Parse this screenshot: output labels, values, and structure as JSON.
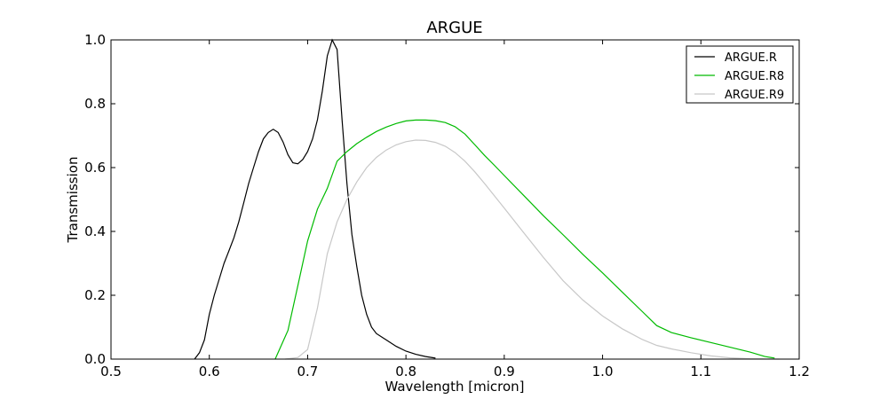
{
  "chart_data": {
    "type": "line",
    "title": "ARGUE",
    "xlabel": "Wavelength [micron]",
    "ylabel": "Transmission",
    "xlim": [
      0.5,
      1.2
    ],
    "ylim": [
      0.0,
      1.0
    ],
    "xticks": [
      0.5,
      0.6,
      0.7,
      0.8,
      0.9,
      1.0,
      1.1,
      1.2
    ],
    "xtick_labels": [
      "0.5",
      "0.6",
      "0.7",
      "0.8",
      "0.9",
      "1.0",
      "1.1",
      "1.2"
    ],
    "yticks": [
      0.0,
      0.2,
      0.4,
      0.6,
      0.8,
      1.0
    ],
    "ytick_labels": [
      "0.0",
      "0.2",
      "0.4",
      "0.6",
      "0.8",
      "1.0"
    ],
    "grid": false,
    "legend": "top-right",
    "series": [
      {
        "name": "ARGUE.R",
        "color": "#000000",
        "points": [
          [
            0.585,
            0.0
          ],
          [
            0.59,
            0.02
          ],
          [
            0.595,
            0.06
          ],
          [
            0.6,
            0.14
          ],
          [
            0.605,
            0.2
          ],
          [
            0.61,
            0.25
          ],
          [
            0.615,
            0.3
          ],
          [
            0.62,
            0.34
          ],
          [
            0.625,
            0.38
          ],
          [
            0.63,
            0.43
          ],
          [
            0.635,
            0.49
          ],
          [
            0.64,
            0.55
          ],
          [
            0.645,
            0.6
          ],
          [
            0.65,
            0.65
          ],
          [
            0.655,
            0.69
          ],
          [
            0.66,
            0.71
          ],
          [
            0.665,
            0.72
          ],
          [
            0.67,
            0.71
          ],
          [
            0.675,
            0.68
          ],
          [
            0.68,
            0.64
          ],
          [
            0.685,
            0.615
          ],
          [
            0.69,
            0.612
          ],
          [
            0.695,
            0.625
          ],
          [
            0.7,
            0.65
          ],
          [
            0.705,
            0.69
          ],
          [
            0.71,
            0.75
          ],
          [
            0.715,
            0.84
          ],
          [
            0.72,
            0.95
          ],
          [
            0.725,
            1.0
          ],
          [
            0.73,
            0.97
          ],
          [
            0.735,
            0.75
          ],
          [
            0.74,
            0.55
          ],
          [
            0.745,
            0.39
          ],
          [
            0.75,
            0.29
          ],
          [
            0.755,
            0.2
          ],
          [
            0.76,
            0.14
          ],
          [
            0.765,
            0.1
          ],
          [
            0.77,
            0.08
          ],
          [
            0.78,
            0.06
          ],
          [
            0.79,
            0.04
          ],
          [
            0.8,
            0.025
          ],
          [
            0.81,
            0.015
          ],
          [
            0.82,
            0.008
          ],
          [
            0.83,
            0.003
          ]
        ]
      },
      {
        "name": "ARGUE.R8",
        "color": "#00bb00",
        "points": [
          [
            0.667,
            0.0
          ],
          [
            0.68,
            0.09
          ],
          [
            0.69,
            0.23
          ],
          [
            0.7,
            0.37
          ],
          [
            0.71,
            0.47
          ],
          [
            0.72,
            0.535
          ],
          [
            0.73,
            0.62
          ],
          [
            0.74,
            0.65
          ],
          [
            0.75,
            0.675
          ],
          [
            0.76,
            0.695
          ],
          [
            0.77,
            0.713
          ],
          [
            0.78,
            0.727
          ],
          [
            0.79,
            0.738
          ],
          [
            0.8,
            0.746
          ],
          [
            0.81,
            0.749
          ],
          [
            0.82,
            0.749
          ],
          [
            0.83,
            0.747
          ],
          [
            0.84,
            0.741
          ],
          [
            0.85,
            0.728
          ],
          [
            0.86,
            0.705
          ],
          [
            0.87,
            0.672
          ],
          [
            0.88,
            0.638
          ],
          [
            0.89,
            0.607
          ],
          [
            0.9,
            0.575
          ],
          [
            0.92,
            0.512
          ],
          [
            0.94,
            0.449
          ],
          [
            0.96,
            0.389
          ],
          [
            0.98,
            0.328
          ],
          [
            1.0,
            0.27
          ],
          [
            1.02,
            0.21
          ],
          [
            1.04,
            0.15
          ],
          [
            1.055,
            0.105
          ],
          [
            1.07,
            0.083
          ],
          [
            1.09,
            0.067
          ],
          [
            1.11,
            0.052
          ],
          [
            1.13,
            0.037
          ],
          [
            1.15,
            0.022
          ],
          [
            1.165,
            0.008
          ],
          [
            1.175,
            0.003
          ]
        ]
      },
      {
        "name": "ARGUE.R9",
        "color": "#c8c8c8",
        "points": [
          [
            0.677,
            0.0
          ],
          [
            0.69,
            0.005
          ],
          [
            0.7,
            0.03
          ],
          [
            0.71,
            0.16
          ],
          [
            0.72,
            0.33
          ],
          [
            0.73,
            0.43
          ],
          [
            0.74,
            0.5
          ],
          [
            0.75,
            0.555
          ],
          [
            0.76,
            0.6
          ],
          [
            0.77,
            0.632
          ],
          [
            0.78,
            0.655
          ],
          [
            0.79,
            0.671
          ],
          [
            0.8,
            0.681
          ],
          [
            0.81,
            0.686
          ],
          [
            0.82,
            0.685
          ],
          [
            0.83,
            0.679
          ],
          [
            0.84,
            0.667
          ],
          [
            0.85,
            0.647
          ],
          [
            0.86,
            0.62
          ],
          [
            0.87,
            0.587
          ],
          [
            0.88,
            0.55
          ],
          [
            0.9,
            0.473
          ],
          [
            0.92,
            0.395
          ],
          [
            0.94,
            0.318
          ],
          [
            0.96,
            0.245
          ],
          [
            0.98,
            0.185
          ],
          [
            1.0,
            0.135
          ],
          [
            1.02,
            0.095
          ],
          [
            1.04,
            0.062
          ],
          [
            1.055,
            0.043
          ],
          [
            1.07,
            0.032
          ],
          [
            1.09,
            0.02
          ],
          [
            1.11,
            0.01
          ],
          [
            1.13,
            0.004
          ],
          [
            1.15,
            0.001
          ],
          [
            1.18,
            0.0
          ]
        ]
      }
    ]
  }
}
